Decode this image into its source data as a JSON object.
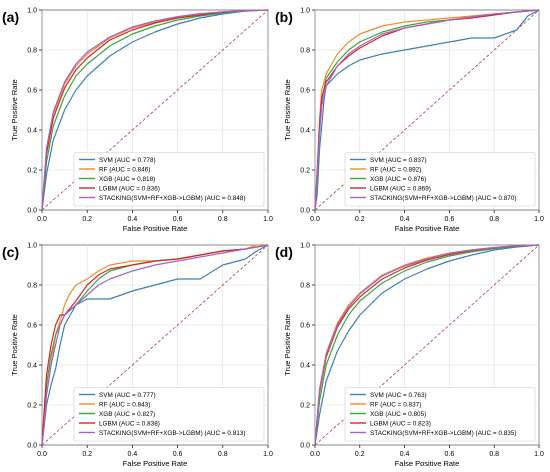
{
  "colors": {
    "SVM": "#3f7fbf",
    "RF": "#f28c28",
    "XGB": "#3aa63a",
    "LGBM": "#d62728",
    "STACKING": "#a463c9",
    "diagonal": "#b0413e"
  },
  "chart_data": [
    {
      "type": "line",
      "panel_label": "(a)",
      "xlabel": "False Positive Rate",
      "ylabel": "True Positive Rate",
      "xlim": [
        0,
        1
      ],
      "ylim": [
        0,
        1
      ],
      "xticks": [
        "0.0",
        "0.2",
        "0.4",
        "0.6",
        "0.8",
        "1.0"
      ],
      "yticks": [
        "0.0",
        "0.2",
        "0.4",
        "0.6",
        "0.8",
        "1.0"
      ],
      "grid": true,
      "legend_position": "bottom-right",
      "series": [
        {
          "name": "SVM (AUC = 0.778)",
          "key": "SVM",
          "x": [
            0,
            0.02,
            0.05,
            0.1,
            0.15,
            0.2,
            0.3,
            0.4,
            0.5,
            0.6,
            0.7,
            0.8,
            0.9,
            1.0
          ],
          "y": [
            0,
            0.18,
            0.35,
            0.5,
            0.6,
            0.67,
            0.77,
            0.84,
            0.89,
            0.93,
            0.96,
            0.98,
            0.995,
            1.0
          ]
        },
        {
          "name": "RF (AUC = 0.846)",
          "key": "RF",
          "x": [
            0,
            0.02,
            0.05,
            0.1,
            0.15,
            0.2,
            0.3,
            0.4,
            0.5,
            0.6,
            0.7,
            0.8,
            0.9,
            1.0
          ],
          "y": [
            0,
            0.3,
            0.48,
            0.63,
            0.72,
            0.78,
            0.86,
            0.91,
            0.94,
            0.965,
            0.98,
            0.99,
            0.997,
            1.0
          ]
        },
        {
          "name": "XGB (AUC = 0.818)",
          "key": "XGB",
          "x": [
            0,
            0.02,
            0.05,
            0.1,
            0.15,
            0.2,
            0.3,
            0.4,
            0.5,
            0.6,
            0.7,
            0.8,
            0.9,
            1.0
          ],
          "y": [
            0,
            0.24,
            0.42,
            0.57,
            0.67,
            0.73,
            0.82,
            0.88,
            0.92,
            0.95,
            0.97,
            0.985,
            0.995,
            1.0
          ]
        },
        {
          "name": "LGBM (AUC = 0.836)",
          "key": "LGBM",
          "x": [
            0,
            0.02,
            0.05,
            0.1,
            0.15,
            0.2,
            0.3,
            0.4,
            0.5,
            0.6,
            0.7,
            0.8,
            0.9,
            1.0
          ],
          "y": [
            0,
            0.28,
            0.46,
            0.61,
            0.7,
            0.76,
            0.85,
            0.9,
            0.935,
            0.96,
            0.975,
            0.99,
            0.997,
            1.0
          ]
        },
        {
          "name": "STACKING(SVM+RF+XGB->LGBM) (AUC = 0.848)",
          "key": "STACKING",
          "x": [
            0,
            0.02,
            0.05,
            0.1,
            0.15,
            0.2,
            0.3,
            0.4,
            0.5,
            0.6,
            0.7,
            0.8,
            0.9,
            1.0
          ],
          "y": [
            0,
            0.31,
            0.49,
            0.64,
            0.73,
            0.79,
            0.865,
            0.915,
            0.945,
            0.967,
            0.982,
            0.991,
            0.997,
            1.0
          ]
        }
      ]
    },
    {
      "type": "line",
      "panel_label": "(b)",
      "xlabel": "False Positive Rate",
      "ylabel": "True Positive Rate",
      "xlim": [
        0,
        1
      ],
      "ylim": [
        0,
        1
      ],
      "xticks": [
        "0.0",
        "0.2",
        "0.4",
        "0.6",
        "0.8",
        "1.0"
      ],
      "yticks": [
        "0.0",
        "0.2",
        "0.4",
        "0.6",
        "0.8",
        "1.0"
      ],
      "grid": true,
      "legend_position": "bottom-right",
      "series": [
        {
          "name": "SVM (AUC = 0.837)",
          "key": "SVM",
          "x": [
            0,
            0.01,
            0.02,
            0.03,
            0.04,
            0.05,
            0.1,
            0.15,
            0.2,
            0.3,
            0.4,
            0.5,
            0.6,
            0.7,
            0.8,
            0.9,
            0.95,
            1.0
          ],
          "y": [
            0,
            0.08,
            0.3,
            0.42,
            0.55,
            0.62,
            0.68,
            0.72,
            0.75,
            0.78,
            0.8,
            0.82,
            0.84,
            0.86,
            0.86,
            0.9,
            0.97,
            1.0
          ]
        },
        {
          "name": "RF (AUC = 0.892)",
          "key": "RF",
          "x": [
            0,
            0.01,
            0.02,
            0.03,
            0.05,
            0.1,
            0.15,
            0.2,
            0.3,
            0.4,
            0.5,
            0.6,
            0.7,
            0.8,
            0.9,
            1.0
          ],
          "y": [
            0,
            0.2,
            0.45,
            0.6,
            0.68,
            0.78,
            0.84,
            0.88,
            0.92,
            0.94,
            0.95,
            0.96,
            0.97,
            0.98,
            0.99,
            1.0
          ]
        },
        {
          "name": "XGB (AUC = 0.876)",
          "key": "XGB",
          "x": [
            0,
            0.01,
            0.02,
            0.03,
            0.05,
            0.1,
            0.15,
            0.2,
            0.3,
            0.4,
            0.5,
            0.6,
            0.7,
            0.8,
            0.9,
            1.0
          ],
          "y": [
            0,
            0.15,
            0.4,
            0.55,
            0.66,
            0.74,
            0.8,
            0.84,
            0.89,
            0.92,
            0.94,
            0.95,
            0.965,
            0.98,
            0.99,
            1.0
          ]
        },
        {
          "name": "LGBM (AUC = 0.869)",
          "key": "LGBM",
          "x": [
            0,
            0.01,
            0.02,
            0.03,
            0.05,
            0.1,
            0.15,
            0.2,
            0.3,
            0.4,
            0.5,
            0.6,
            0.7,
            0.8,
            0.9,
            1.0
          ],
          "y": [
            0,
            0.2,
            0.42,
            0.56,
            0.64,
            0.72,
            0.77,
            0.81,
            0.87,
            0.91,
            0.93,
            0.95,
            0.96,
            0.975,
            0.99,
            1.0
          ]
        },
        {
          "name": "STACKING(SVM+RF+XGB->LGBM) (AUC = 0.870)",
          "key": "STACKING",
          "x": [
            0,
            0.01,
            0.02,
            0.03,
            0.05,
            0.1,
            0.15,
            0.2,
            0.3,
            0.4,
            0.5,
            0.6,
            0.7,
            0.8,
            0.9,
            1.0
          ],
          "y": [
            0,
            0.18,
            0.38,
            0.52,
            0.62,
            0.72,
            0.78,
            0.82,
            0.88,
            0.91,
            0.93,
            0.95,
            0.965,
            0.98,
            0.99,
            1.0
          ]
        }
      ]
    },
    {
      "type": "line",
      "panel_label": "(c)",
      "xlabel": "False Positive Rate",
      "ylabel": "True Positive Rate",
      "xlim": [
        0,
        1
      ],
      "ylim": [
        0,
        1
      ],
      "xticks": [
        "0.0",
        "0.2",
        "0.4",
        "0.6",
        "0.8",
        "1.0"
      ],
      "yticks": [
        "0.0",
        "0.2",
        "0.4",
        "0.6",
        "0.8",
        "1.0"
      ],
      "grid": true,
      "legend_position": "bottom-right",
      "series": [
        {
          "name": "SVM (AUC = 0.777)",
          "key": "SVM",
          "x": [
            0,
            0.01,
            0.02,
            0.04,
            0.06,
            0.08,
            0.1,
            0.15,
            0.2,
            0.3,
            0.4,
            0.5,
            0.6,
            0.7,
            0.8,
            0.9,
            0.95,
            1.0
          ],
          "y": [
            0,
            0.1,
            0.2,
            0.3,
            0.38,
            0.5,
            0.6,
            0.7,
            0.73,
            0.73,
            0.77,
            0.8,
            0.83,
            0.83,
            0.9,
            0.93,
            0.97,
            1.0
          ]
        },
        {
          "name": "RF (AUC = 0.843)",
          "key": "RF",
          "x": [
            0,
            0.01,
            0.02,
            0.04,
            0.06,
            0.08,
            0.1,
            0.12,
            0.15,
            0.2,
            0.25,
            0.3,
            0.4,
            0.5,
            0.6,
            0.7,
            0.8,
            0.9,
            0.95,
            1.0
          ],
          "y": [
            0,
            0.12,
            0.25,
            0.4,
            0.55,
            0.62,
            0.7,
            0.75,
            0.8,
            0.83,
            0.87,
            0.9,
            0.92,
            0.92,
            0.93,
            0.95,
            0.97,
            0.98,
            1.0,
            1.0
          ]
        },
        {
          "name": "XGB (AUC = 0.827)",
          "key": "XGB",
          "x": [
            0,
            0.01,
            0.02,
            0.04,
            0.06,
            0.08,
            0.1,
            0.15,
            0.2,
            0.25,
            0.3,
            0.4,
            0.5,
            0.6,
            0.7,
            0.8,
            0.9,
            0.95,
            1.0
          ],
          "y": [
            0,
            0.15,
            0.3,
            0.45,
            0.55,
            0.6,
            0.65,
            0.7,
            0.77,
            0.83,
            0.87,
            0.9,
            0.92,
            0.93,
            0.95,
            0.97,
            0.98,
            0.99,
            1.0
          ]
        },
        {
          "name": "LGBM (AUC = 0.838)",
          "key": "LGBM",
          "x": [
            0,
            0.01,
            0.02,
            0.04,
            0.06,
            0.08,
            0.1,
            0.15,
            0.2,
            0.25,
            0.3,
            0.4,
            0.5,
            0.6,
            0.7,
            0.8,
            0.9,
            0.95,
            1.0
          ],
          "y": [
            0,
            0.18,
            0.35,
            0.5,
            0.6,
            0.65,
            0.65,
            0.72,
            0.8,
            0.85,
            0.88,
            0.9,
            0.92,
            0.93,
            0.95,
            0.97,
            0.98,
            0.99,
            1.0
          ]
        },
        {
          "name": "STACKING(SVM+RF+XGB->LGBM) (AUC = 0.813)",
          "key": "STACKING",
          "x": [
            0,
            0.01,
            0.02,
            0.04,
            0.06,
            0.08,
            0.1,
            0.15,
            0.2,
            0.25,
            0.3,
            0.4,
            0.5,
            0.6,
            0.7,
            0.8,
            0.9,
            0.95,
            1.0
          ],
          "y": [
            0,
            0.1,
            0.25,
            0.4,
            0.5,
            0.6,
            0.65,
            0.7,
            0.75,
            0.8,
            0.83,
            0.87,
            0.9,
            0.92,
            0.94,
            0.96,
            0.98,
            0.99,
            1.0
          ]
        }
      ]
    },
    {
      "type": "line",
      "panel_label": "(d)",
      "xlabel": "False Positive Rate",
      "ylabel": "True Positive Rate",
      "xlim": [
        0,
        1
      ],
      "ylim": [
        0,
        1
      ],
      "xticks": [
        "0.0",
        "0.2",
        "0.4",
        "0.6",
        "0.8",
        "1.0"
      ],
      "yticks": [
        "0.0",
        "0.2",
        "0.4",
        "0.6",
        "0.8",
        "1.0"
      ],
      "grid": true,
      "legend_position": "bottom-right",
      "series": [
        {
          "name": "SVM (AUC = 0.763)",
          "key": "SVM",
          "x": [
            0,
            0.02,
            0.05,
            0.1,
            0.15,
            0.2,
            0.3,
            0.4,
            0.5,
            0.6,
            0.7,
            0.8,
            0.9,
            1.0
          ],
          "y": [
            0,
            0.15,
            0.32,
            0.47,
            0.57,
            0.65,
            0.76,
            0.83,
            0.88,
            0.92,
            0.95,
            0.975,
            0.99,
            1.0
          ]
        },
        {
          "name": "RF (AUC = 0.837)",
          "key": "RF",
          "x": [
            0,
            0.02,
            0.05,
            0.1,
            0.15,
            0.2,
            0.3,
            0.4,
            0.5,
            0.6,
            0.7,
            0.8,
            0.9,
            1.0
          ],
          "y": [
            0,
            0.28,
            0.46,
            0.61,
            0.7,
            0.76,
            0.85,
            0.9,
            0.935,
            0.96,
            0.976,
            0.988,
            0.996,
            1.0
          ]
        },
        {
          "name": "XGB (AUC = 0.805)",
          "key": "XGB",
          "x": [
            0,
            0.02,
            0.05,
            0.1,
            0.15,
            0.2,
            0.3,
            0.4,
            0.5,
            0.6,
            0.7,
            0.8,
            0.9,
            1.0
          ],
          "y": [
            0,
            0.22,
            0.4,
            0.55,
            0.65,
            0.72,
            0.81,
            0.87,
            0.915,
            0.945,
            0.966,
            0.982,
            0.994,
            1.0
          ]
        },
        {
          "name": "LGBM (AUC = 0.823)",
          "key": "LGBM",
          "x": [
            0,
            0.02,
            0.05,
            0.1,
            0.15,
            0.2,
            0.3,
            0.4,
            0.5,
            0.6,
            0.7,
            0.8,
            0.9,
            1.0
          ],
          "y": [
            0,
            0.26,
            0.44,
            0.59,
            0.68,
            0.74,
            0.83,
            0.885,
            0.925,
            0.952,
            0.972,
            0.986,
            0.995,
            1.0
          ]
        },
        {
          "name": "STACKING(SVM+RF+XGB->LGBM) (AUC = 0.835)",
          "key": "STACKING",
          "x": [
            0,
            0.02,
            0.05,
            0.1,
            0.15,
            0.2,
            0.3,
            0.4,
            0.5,
            0.6,
            0.7,
            0.8,
            0.9,
            1.0
          ],
          "y": [
            0,
            0.27,
            0.45,
            0.6,
            0.69,
            0.755,
            0.845,
            0.895,
            0.93,
            0.958,
            0.975,
            0.987,
            0.996,
            1.0
          ]
        }
      ]
    }
  ]
}
